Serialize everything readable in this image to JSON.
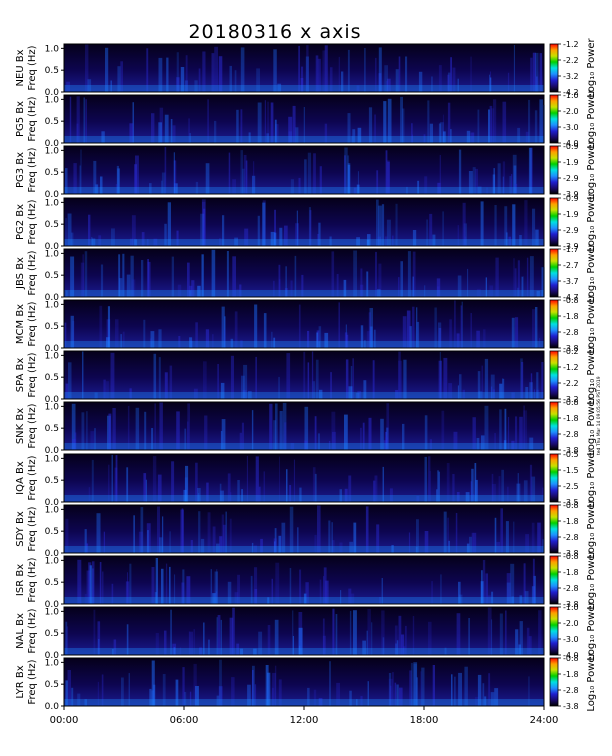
{
  "chart_data": {
    "type": "heatmap",
    "title": "20180316 x axis",
    "stamp": "ted Thu Mar 14 09:05:56 PST 2019",
    "x_ticks": [
      "00:00",
      "06:00",
      "12:00",
      "18:00",
      "24:00"
    ],
    "x_range_hours": [
      0,
      24
    ],
    "y_ticks": [
      "1.0",
      "0.5",
      "0.0"
    ],
    "y_range_hz": [
      0,
      1.1
    ],
    "colorbar_label": "Log₁₀ Power",
    "panels": [
      {
        "station": "NEU Bx",
        "ylabel": "Freq (Hz)",
        "cbar_ticks": [
          "-1.2",
          "-2.2",
          "-3.2",
          "-4.2"
        ],
        "cbar_range": [
          -4.2,
          -1.2
        ]
      },
      {
        "station": "PG5 Bx",
        "ylabel": "Freq (Hz)",
        "cbar_ticks": [
          "-1.0",
          "-2.0",
          "-3.0",
          "-4.0"
        ],
        "cbar_range": [
          -4.0,
          -1.0
        ]
      },
      {
        "station": "PG3 Bx",
        "ylabel": "Freq (Hz)",
        "cbar_ticks": [
          "-0.9",
          "-1.9",
          "-2.9",
          "-3.9"
        ],
        "cbar_range": [
          -3.9,
          -0.9
        ]
      },
      {
        "station": "PG2 Bx",
        "ylabel": "Freq (Hz)",
        "cbar_ticks": [
          "-0.9",
          "-1.9",
          "-2.9",
          "-3.9"
        ],
        "cbar_range": [
          -3.9,
          -0.9
        ]
      },
      {
        "station": "JBS Bx",
        "ylabel": "Freq (Hz)",
        "cbar_ticks": [
          "-1.7",
          "-2.7",
          "-3.7",
          "-4.7"
        ],
        "cbar_range": [
          -4.7,
          -1.7
        ]
      },
      {
        "station": "MCM Bx",
        "ylabel": "Freq (Hz)",
        "cbar_ticks": [
          "-0.8",
          "-1.8",
          "-2.8",
          "-3.8"
        ],
        "cbar_range": [
          -3.8,
          -0.8
        ]
      },
      {
        "station": "SPA Bx",
        "ylabel": "Freq (Hz)",
        "cbar_ticks": [
          "-0.2",
          "-1.2",
          "-2.2",
          "-3.2"
        ],
        "cbar_range": [
          -3.2,
          -0.2
        ]
      },
      {
        "station": "SNK Bx",
        "ylabel": "Freq (Hz)",
        "cbar_ticks": [
          "-0.8",
          "-1.8",
          "-2.8",
          "-3.8"
        ],
        "cbar_range": [
          -3.8,
          -0.8
        ]
      },
      {
        "station": "IQA Bx",
        "ylabel": "Freq (Hz)",
        "cbar_ticks": [
          "-0.5",
          "-1.5",
          "-2.5",
          "-3.5"
        ],
        "cbar_range": [
          -3.5,
          -0.5
        ]
      },
      {
        "station": "SDY Bx",
        "ylabel": "Freq (Hz)",
        "cbar_ticks": [
          "-0.8",
          "-1.8",
          "-2.8",
          "-3.8"
        ],
        "cbar_range": [
          -3.8,
          -0.8
        ]
      },
      {
        "station": "ISR Bx",
        "ylabel": "Freq (Hz)",
        "cbar_ticks": [
          "-0.8",
          "-1.8",
          "-2.8",
          "-3.8"
        ],
        "cbar_range": [
          -3.8,
          -0.8
        ]
      },
      {
        "station": "NAL Bx",
        "ylabel": "Freq (Hz)",
        "cbar_ticks": [
          "-1.0",
          "-2.0",
          "-3.0",
          "-4.0"
        ],
        "cbar_range": [
          -4.0,
          -1.0
        ]
      },
      {
        "station": "LYR Bx",
        "ylabel": "Freq (Hz)",
        "cbar_ticks": [
          "-0.8",
          "-1.8",
          "-2.8",
          "-3.8"
        ],
        "cbar_range": [
          -3.8,
          -0.8
        ]
      }
    ],
    "colormap": [
      "#000000",
      "#1a0a6e",
      "#2020d0",
      "#1e90ff",
      "#00e0e0",
      "#00d000",
      "#c8e000",
      "#ffa000",
      "#ff0000"
    ]
  }
}
